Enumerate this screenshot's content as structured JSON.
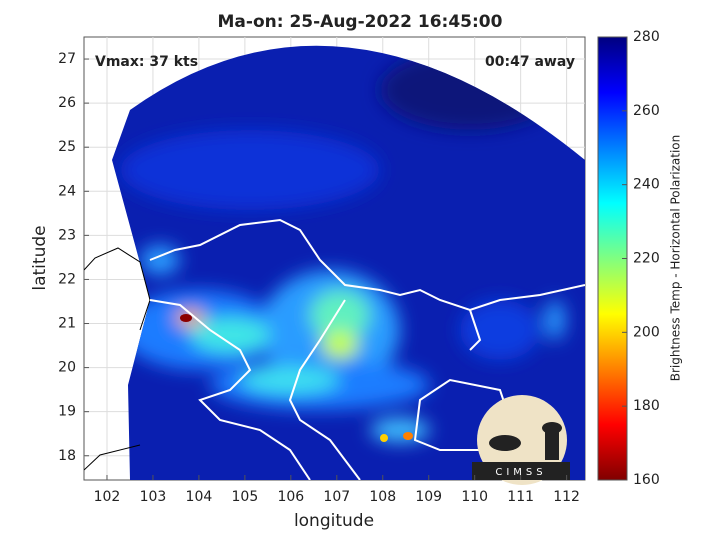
{
  "chart_data": {
    "type": "heatmap",
    "title": "Ma-on: 25-Aug-2022 16:45:00",
    "xlabel": "longitude",
    "ylabel": "latitude",
    "xlim": [
      101.5,
      112.4
    ],
    "xticks": [
      102,
      103,
      104,
      105,
      106,
      107,
      108,
      109,
      110,
      111,
      112
    ],
    "ylim": [
      17.45,
      27.5
    ],
    "yticks": [
      18,
      19,
      20,
      21,
      22,
      23,
      24,
      25,
      26,
      27
    ],
    "grid": true,
    "annotations": [
      "Vmax: 37 kts",
      "00:47 away"
    ],
    "logo": "CIMSS",
    "colorbar": {
      "label": "Brightness Temp - Horizontal Polarization",
      "lim": [
        160,
        280
      ],
      "ticks": [
        160,
        180,
        200,
        220,
        240,
        260,
        280
      ],
      "colormap": [
        "#800000",
        "#ff0000",
        "#ff8000",
        "#ffff00",
        "#80ff80",
        "#00ffff",
        "#0080ff",
        "#0000ff",
        "#000080"
      ]
    }
  }
}
